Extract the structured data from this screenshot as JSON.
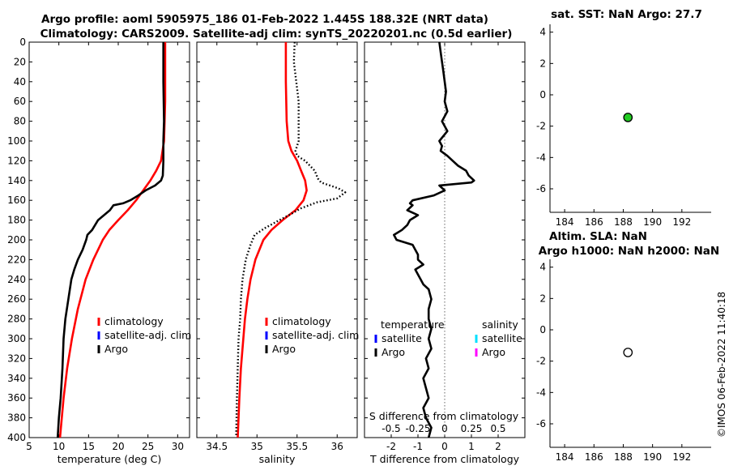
{
  "figure": {
    "title_line1": "Argo profile: aoml 5905975_186 01-Feb-2022 1.445S 188.32E (NRT data)",
    "title_line2": "Climatology: CARS2009. Satellite-adj clim: synTS_20220201.nc (0.5d earlier)",
    "side_stamp": "©IMOS 06-Feb-2022 11:40:18"
  },
  "colors": {
    "climatology": "#ff0000",
    "satellite": "#0000ff",
    "argo": "#000000",
    "sat_salinity": "#00e0ff",
    "argo_salinity": "#ff00ff",
    "sst_marker": "#22cc22"
  },
  "chart_data": [
    {
      "id": "temperature",
      "type": "line",
      "xlabel": "temperature (deg C)",
      "ylabel": "depth",
      "xlim": [
        5,
        32
      ],
      "ylim": [
        400,
        0
      ],
      "xticks": [
        5,
        10,
        15,
        20,
        25,
        30
      ],
      "yticks": [
        0,
        20,
        40,
        60,
        80,
        100,
        120,
        140,
        160,
        180,
        200,
        220,
        240,
        260,
        280,
        300,
        320,
        340,
        360,
        380,
        400
      ],
      "legend": [
        {
          "label": "climatology",
          "color": "#ff0000"
        },
        {
          "label": "satellite-adj. clim",
          "color": "#0000ff"
        },
        {
          "label": "Argo",
          "color": "#000000"
        }
      ],
      "series": [
        {
          "name": "climatology",
          "color": "#ff0000",
          "dash": "solid",
          "depth": [
            0,
            60,
            100,
            120,
            130,
            140,
            150,
            160,
            170,
            180,
            190,
            200,
            220,
            240,
            270,
            300,
            330,
            360,
            400
          ],
          "values": [
            27.9,
            27.9,
            27.7,
            27.2,
            26.4,
            25.4,
            24.2,
            23.0,
            21.6,
            20.0,
            18.5,
            17.4,
            15.8,
            14.5,
            13.2,
            12.2,
            11.4,
            10.8,
            10.2
          ]
        },
        {
          "name": "Argo",
          "color": "#000000",
          "dash": "solid",
          "depth": [
            0,
            40,
            80,
            100,
            120,
            135,
            140,
            145,
            150,
            155,
            160,
            163,
            165,
            170,
            175,
            180,
            190,
            195,
            200,
            210,
            220,
            230,
            240,
            260,
            280,
            300,
            330,
            360,
            380,
            400
          ],
          "values": [
            27.6,
            27.6,
            27.7,
            27.6,
            27.6,
            27.5,
            27.2,
            26.2,
            24.6,
            23.4,
            22.0,
            20.8,
            19.2,
            18.6,
            17.6,
            16.6,
            15.6,
            14.8,
            14.6,
            14.0,
            13.2,
            12.6,
            12.1,
            11.6,
            11.1,
            10.8,
            10.6,
            10.3,
            10.0,
            9.8
          ]
        }
      ]
    },
    {
      "id": "salinity",
      "type": "line",
      "xlabel": "salinity",
      "ylabel": "depth",
      "xlim": [
        34.25,
        36.25
      ],
      "ylim": [
        400,
        0
      ],
      "xticks": [
        34.5,
        35,
        35.5,
        36
      ],
      "xticklabels": [
        "34.5",
        "35",
        "35.5",
        "36"
      ],
      "legend": [
        {
          "label": "climatology",
          "color": "#ff0000"
        },
        {
          "label": "satellite-adj. clim",
          "color": "#0000ff"
        },
        {
          "label": "Argo",
          "color": "#000000"
        }
      ],
      "series": [
        {
          "name": "climatology",
          "color": "#ff0000",
          "dash": "solid",
          "depth": [
            0,
            40,
            80,
            100,
            110,
            120,
            130,
            140,
            150,
            160,
            170,
            180,
            190,
            200,
            220,
            240,
            260,
            280,
            300,
            330,
            360,
            400
          ],
          "values": [
            35.36,
            35.36,
            35.37,
            35.39,
            35.43,
            35.5,
            35.55,
            35.6,
            35.62,
            35.58,
            35.48,
            35.32,
            35.18,
            35.08,
            34.98,
            34.92,
            34.88,
            34.85,
            34.83,
            34.8,
            34.78,
            34.76
          ]
        },
        {
          "name": "Argo",
          "color": "#000000",
          "dash": "dotted",
          "depth": [
            0,
            20,
            60,
            100,
            110,
            115,
            120,
            130,
            138,
            142,
            148,
            152,
            158,
            162,
            168,
            175,
            180,
            188,
            195,
            205,
            220,
            240,
            260,
            280,
            300,
            330,
            360,
            400
          ],
          "values": [
            35.47,
            35.46,
            35.52,
            35.52,
            35.48,
            35.5,
            35.6,
            35.72,
            35.76,
            35.8,
            36.02,
            36.1,
            36.0,
            35.75,
            35.55,
            35.4,
            35.28,
            35.1,
            34.97,
            34.92,
            34.86,
            34.82,
            34.8,
            34.79,
            34.77,
            34.76,
            34.75,
            34.74
          ]
        }
      ]
    },
    {
      "id": "difference",
      "type": "line",
      "xlabel": "T difference from climatology",
      "xlabel_top": "S difference from climatology",
      "xlim": [
        -3,
        3
      ],
      "xticks": [
        -2,
        -1,
        0,
        1,
        2
      ],
      "top_ticks": [
        -0.5,
        -0.25,
        0,
        0.25,
        0.5
      ],
      "top_ticklabels": [
        "-0.5",
        "-0.25",
        "0",
        "0.25",
        "0.5"
      ],
      "legend_temperature_title": "temperature",
      "legend_salinity_title": "salinity",
      "legend_temperature": [
        {
          "label": "satellite",
          "color": "#0000ff"
        },
        {
          "label": "Argo",
          "color": "#000000"
        }
      ],
      "legend_salinity": [
        {
          "label": "satellite",
          "color": "#00e0ff"
        },
        {
          "label": "Argo",
          "color": "#ff00ff"
        }
      ],
      "series": [
        {
          "name": "Argo T diff",
          "color": "#000000",
          "dash": "solid",
          "depth": [
            0,
            10,
            20,
            30,
            40,
            50,
            60,
            70,
            80,
            90,
            100,
            105,
            110,
            115,
            120,
            125,
            130,
            135,
            140,
            142,
            145,
            150,
            155,
            160,
            163,
            165,
            170,
            175,
            180,
            185,
            190,
            195,
            200,
            205,
            210,
            215,
            220,
            225,
            230,
            235,
            240,
            245,
            250,
            260,
            270,
            280,
            290,
            300,
            310,
            320,
            330,
            340,
            350,
            360,
            370,
            380,
            390,
            400
          ],
          "values": [
            -0.2,
            -0.15,
            -0.1,
            -0.05,
            0.0,
            0.05,
            0.0,
            0.1,
            -0.1,
            0.1,
            -0.2,
            -0.1,
            -0.15,
            0.1,
            0.3,
            0.5,
            0.8,
            0.9,
            1.1,
            1.0,
            -0.2,
            0.0,
            -0.4,
            -1.2,
            -1.3,
            -1.2,
            -1.4,
            -1.0,
            -1.3,
            -1.4,
            -1.6,
            -1.9,
            -1.8,
            -1.2,
            -1.1,
            -1.0,
            -1.0,
            -0.8,
            -1.1,
            -1.0,
            -0.9,
            -0.8,
            -0.6,
            -0.5,
            -0.6,
            -0.6,
            -0.5,
            -0.6,
            -0.5,
            -0.7,
            -0.6,
            -0.8,
            -0.7,
            -0.6,
            -0.8,
            -0.7,
            -0.5,
            -0.6
          ]
        }
      ]
    },
    {
      "id": "sst",
      "type": "scatter",
      "title": "sat. SST: NaN Argo: 27.7",
      "xlim": [
        183,
        194
      ],
      "ylim": [
        -7.5,
        4.5
      ],
      "xticks": [
        184,
        186,
        188,
        190,
        192
      ],
      "yticks": [
        4,
        2,
        0,
        -2,
        -4,
        -6
      ],
      "points": [
        {
          "x": 188.32,
          "y": -1.445,
          "fill": "#22cc22"
        }
      ]
    },
    {
      "id": "sla",
      "type": "scatter",
      "title_line1": "Altim. SLA: NaN",
      "title_line2": "Argo h1000: NaN h2000: NaN",
      "xlim": [
        183,
        194
      ],
      "ylim": [
        -7.5,
        4.5
      ],
      "xticks": [
        184,
        186,
        188,
        190,
        192
      ],
      "yticks": [
        4,
        2,
        0,
        -2,
        -4,
        -6
      ],
      "points": [
        {
          "x": 188.32,
          "y": -1.445,
          "fill": "#ffffff"
        }
      ]
    }
  ]
}
